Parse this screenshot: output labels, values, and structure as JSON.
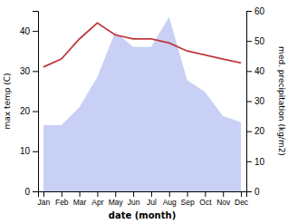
{
  "chart_data": {
    "type": "line",
    "categories": [
      "Jan",
      "Feb",
      "Mar",
      "Apr",
      "May",
      "Jun",
      "Jul",
      "Aug",
      "Sep",
      "Oct",
      "Nov",
      "Dec"
    ],
    "xlabel": "date (month)",
    "ylabel": "max temp (C)",
    "y2label": "med. precipitation (kg/m2)",
    "ylim": [
      0,
      45
    ],
    "yticks": [
      0,
      10,
      20,
      30,
      40
    ],
    "y2lim": [
      0,
      60
    ],
    "y2ticks": [
      0,
      10,
      20,
      30,
      40,
      50,
      60
    ],
    "grid": false,
    "series": [
      {
        "type": "area",
        "axis": "y2",
        "color": "#c8d0f5",
        "values": [
          22,
          22,
          28,
          38,
          53,
          48,
          48,
          58,
          37,
          33,
          25,
          23
        ]
      },
      {
        "type": "line",
        "color": "#c0393b",
        "values": [
          31,
          33,
          38,
          42,
          39,
          38,
          38,
          37,
          35,
          34,
          33,
          32
        ]
      }
    ]
  }
}
